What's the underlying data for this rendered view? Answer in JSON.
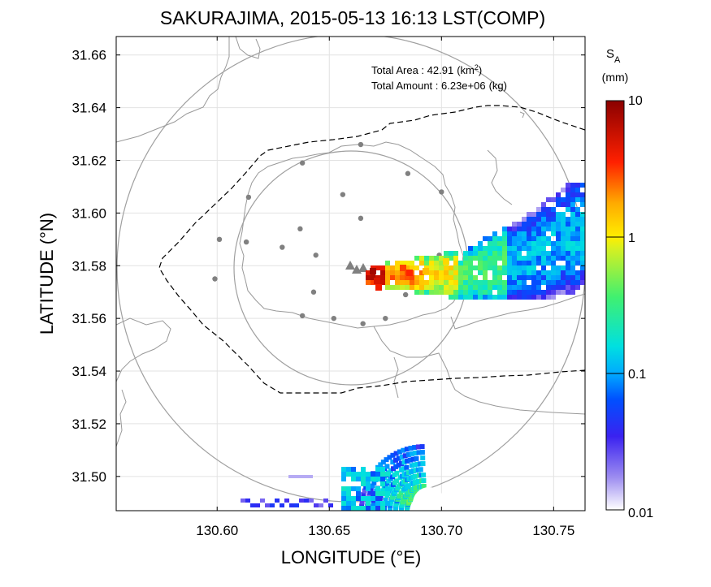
{
  "chart_data": {
    "type": "heatmap",
    "title": "SAKURAJIMA, 2015-05-13 16:13 LST(COMP)",
    "xlabel": "LONGITUDE (°E)",
    "ylabel": "LATITUDE (°N)",
    "xlim": [
      130.555,
      130.764
    ],
    "ylim": [
      31.487,
      31.667
    ],
    "x_ticks": [
      130.6,
      130.65,
      130.7,
      130.75
    ],
    "x_tick_labels": [
      "130.60",
      "130.65",
      "130.70",
      "130.75"
    ],
    "y_ticks": [
      31.5,
      31.52,
      31.54,
      31.56,
      31.58,
      31.6,
      31.62,
      31.64,
      31.66
    ],
    "y_tick_labels": [
      "31.50",
      "31.52",
      "31.54",
      "31.56",
      "31.58",
      "31.60",
      "31.62",
      "31.64",
      "31.66"
    ],
    "grid": true,
    "annotations": {
      "total_area_label": "Total Area   : ",
      "total_area_value": "42.91",
      "total_area_unit": "(km",
      "total_area_unit_sup": "2",
      "total_area_unit_close": ")",
      "total_amount_label": "Total Amount : ",
      "total_amount_value": "6.23e+06",
      "total_amount_unit": "(kg)"
    },
    "colorbar": {
      "label_main": "S",
      "label_sub": "A",
      "unit": "(mm)",
      "scale": "log",
      "range": [
        0.01,
        10
      ],
      "ticks": [
        0.01,
        0.1,
        1,
        10
      ],
      "tick_labels": [
        "0.01",
        "0.1",
        "1",
        "10"
      ]
    },
    "vent": {
      "lon": 130.662,
      "lat": 31.5805
    },
    "range_circles_km": [
      16,
      30
    ],
    "stations": [
      [
        130.664,
        31.626
      ],
      [
        130.638,
        31.619
      ],
      [
        130.685,
        31.615
      ],
      [
        130.614,
        31.606
      ],
      [
        130.656,
        31.607
      ],
      [
        130.7,
        31.608
      ],
      [
        130.664,
        31.598
      ],
      [
        130.601,
        31.59
      ],
      [
        130.613,
        31.589
      ],
      [
        130.629,
        31.587
      ],
      [
        130.637,
        31.594
      ],
      [
        130.644,
        31.584
      ],
      [
        130.699,
        31.584
      ],
      [
        130.599,
        31.575
      ],
      [
        130.643,
        31.57
      ],
      [
        130.684,
        31.569
      ],
      [
        130.638,
        31.561
      ],
      [
        130.652,
        31.56
      ],
      [
        130.665,
        31.558
      ],
      [
        130.675,
        31.56
      ]
    ],
    "series": [
      {
        "name": "plume_core",
        "points": [
          [
            130.666,
            31.578,
            6.0
          ],
          [
            130.67,
            31.58,
            2.5
          ],
          [
            130.675,
            31.578,
            2.0
          ],
          [
            130.681,
            31.577,
            3.0
          ],
          [
            130.69,
            31.579,
            1.5
          ],
          [
            130.7,
            31.58,
            1.2
          ],
          [
            130.71,
            31.582,
            0.6
          ],
          [
            130.72,
            31.584,
            0.3
          ],
          [
            130.73,
            31.588,
            0.2
          ],
          [
            130.74,
            31.592,
            0.1
          ],
          [
            130.75,
            31.596,
            0.06
          ],
          [
            130.76,
            31.588,
            0.04
          ]
        ]
      },
      {
        "name": "south_echo",
        "points": [
          [
            130.66,
            31.495,
            0.3
          ],
          [
            130.668,
            31.5,
            0.15
          ],
          [
            130.655,
            31.492,
            0.1
          ]
        ]
      }
    ]
  }
}
